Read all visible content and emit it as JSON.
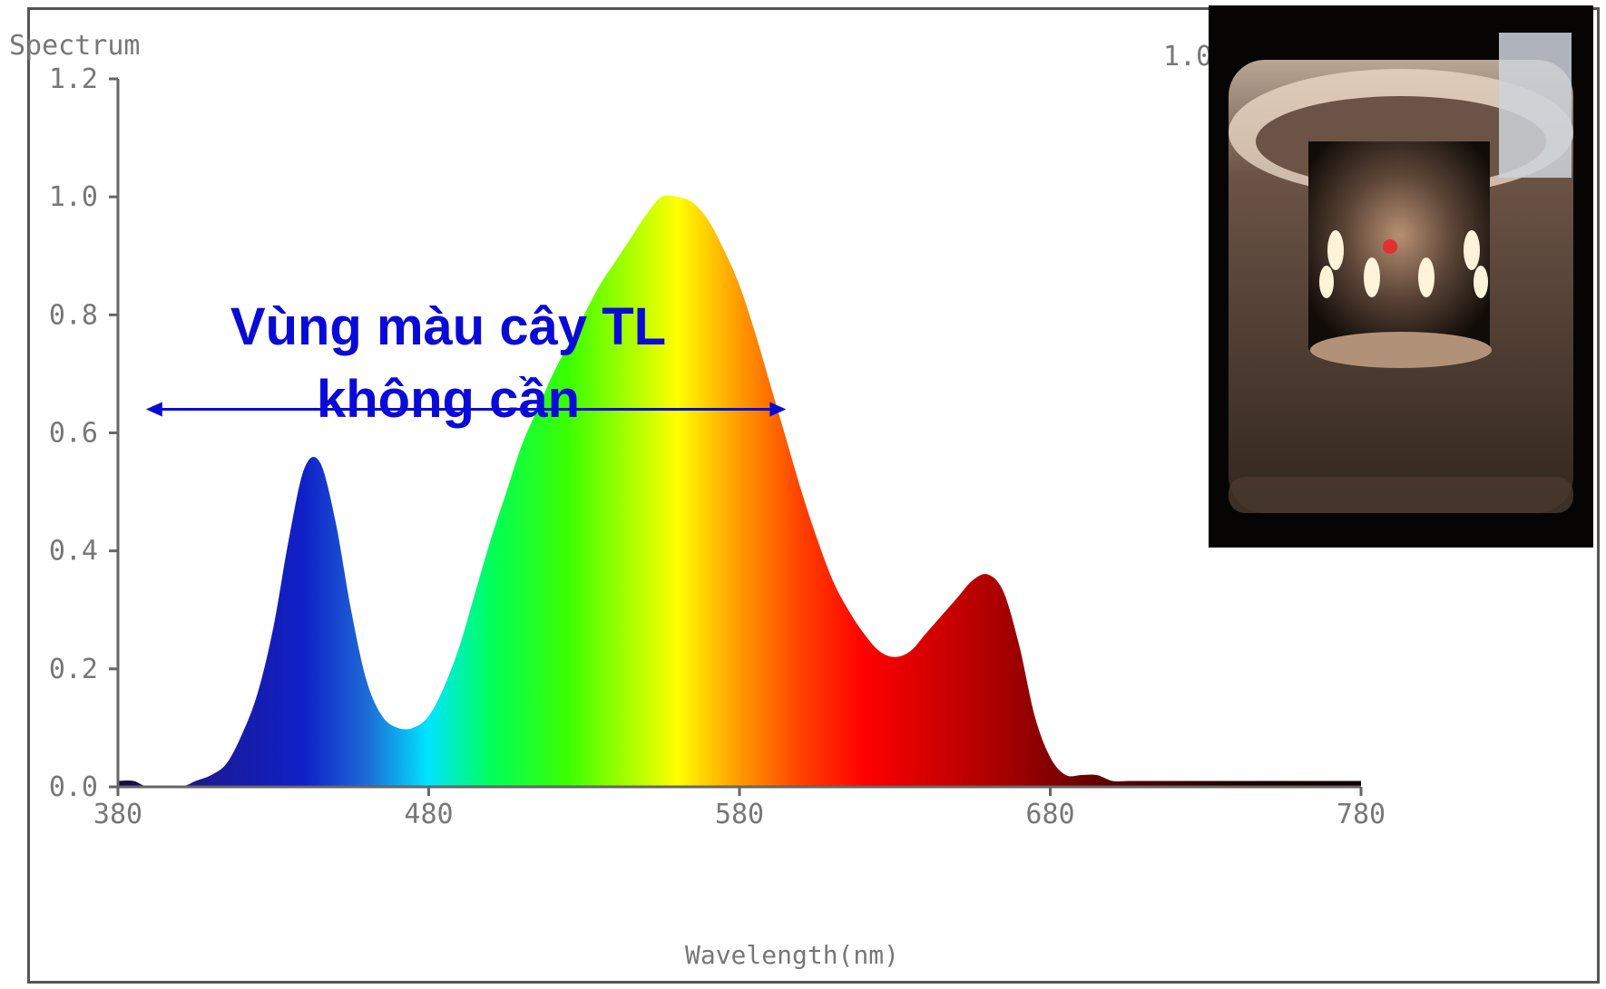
{
  "chart_data": {
    "type": "area",
    "title": "Spectrum",
    "xlabel": "Wavelength(nm)",
    "ylabel": "",
    "xlim": [
      380,
      780
    ],
    "ylim": [
      0,
      1.2
    ],
    "x_ticks": [
      "380",
      "480",
      "580",
      "680",
      "780"
    ],
    "y_ticks": [
      "0.0",
      "0.2",
      "0.4",
      "0.6",
      "0.8",
      "1.0",
      "1.2"
    ],
    "top_right_text": "1.0",
    "grid": false,
    "fill": "visible-spectrum gradient",
    "series": [
      {
        "x": [
          380,
          385,
          390,
          400,
          405,
          410,
          415,
          420,
          425,
          430,
          435,
          440,
          445,
          450,
          455,
          460,
          465,
          470,
          475,
          480,
          485,
          490,
          495,
          500,
          505,
          510,
          515,
          520,
          525,
          530,
          535,
          540,
          545,
          550,
          555,
          560,
          565,
          570,
          575,
          580,
          585,
          590,
          595,
          600,
          605,
          610,
          615,
          620,
          625,
          630,
          635,
          640,
          645,
          650,
          655,
          660,
          665,
          670,
          675,
          680,
          685,
          690,
          695,
          700,
          705,
          710,
          715,
          720,
          725,
          730,
          735,
          740,
          745,
          750,
          755,
          760,
          765,
          770,
          775,
          780
        ],
        "values": [
          0.01,
          0.01,
          0.0,
          0.0,
          0.01,
          0.02,
          0.04,
          0.09,
          0.16,
          0.27,
          0.42,
          0.54,
          0.55,
          0.45,
          0.3,
          0.18,
          0.12,
          0.1,
          0.1,
          0.12,
          0.17,
          0.24,
          0.33,
          0.42,
          0.5,
          0.58,
          0.64,
          0.7,
          0.75,
          0.8,
          0.85,
          0.89,
          0.93,
          0.97,
          1.0,
          1.0,
          0.99,
          0.96,
          0.91,
          0.85,
          0.77,
          0.68,
          0.59,
          0.5,
          0.42,
          0.35,
          0.3,
          0.26,
          0.23,
          0.22,
          0.23,
          0.26,
          0.29,
          0.32,
          0.35,
          0.36,
          0.33,
          0.24,
          0.12,
          0.05,
          0.02,
          0.02,
          0.02,
          0.01,
          0.01,
          0.01,
          0.01,
          0.01,
          0.01,
          0.01,
          0.01,
          0.01,
          0.01,
          0.01,
          0.01,
          0.01,
          0.01,
          0.01,
          0.01,
          0.01
        ]
      }
    ]
  },
  "annotation": {
    "line1": "Vùng màu cây TL",
    "line2": "không cần",
    "range_x": [
      389,
      595
    ],
    "range_y": 0.64,
    "color": "#0a0ad8"
  },
  "inset_photo": {
    "subject": "LED bulb with amber glow in glass housing"
  },
  "colors": {
    "axis": "#666666",
    "tick_label": "#777777",
    "annotation": "#0a0ad8"
  }
}
